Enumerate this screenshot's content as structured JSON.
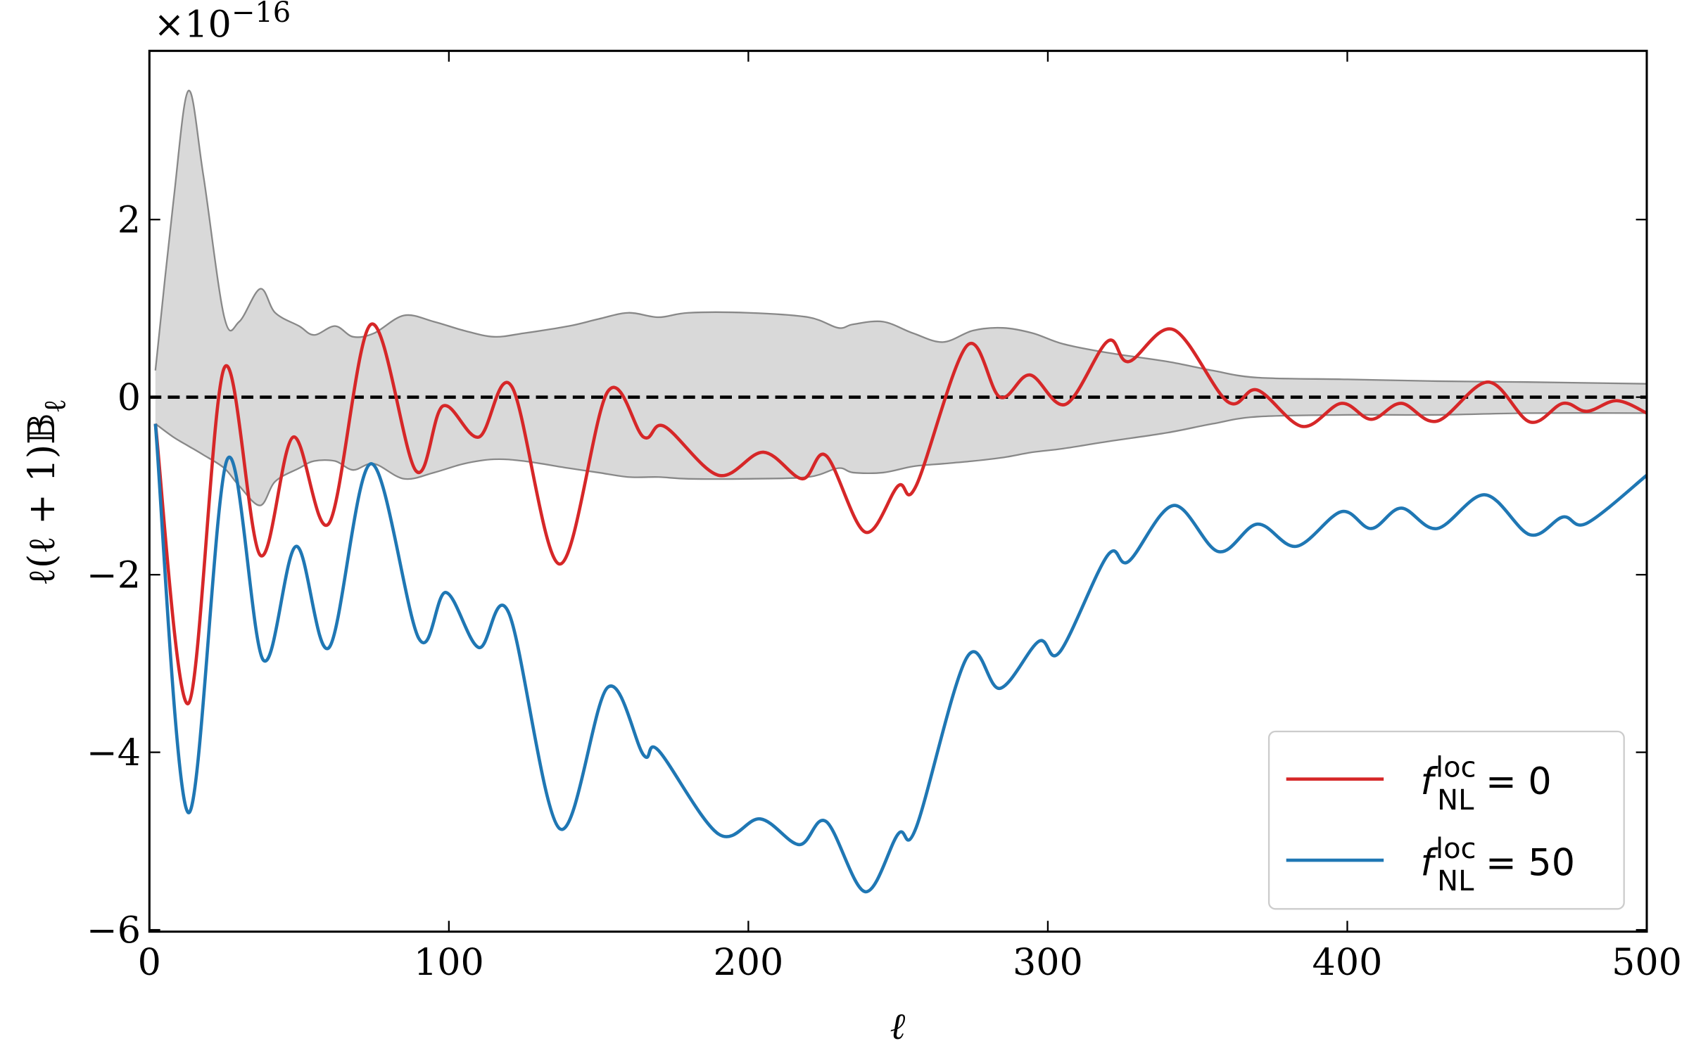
{
  "chart_data": {
    "type": "line",
    "x_label": "ℓ",
    "y_label": "ℓ(ℓ + 1)𝔹",
    "y_label_sub": "ℓ",
    "offset_text": "×10",
    "offset_exponent": "−16",
    "xlim": [
      0,
      500
    ],
    "xticks": [
      0,
      100,
      200,
      300,
      400,
      500
    ],
    "ylim": [
      -6.02,
      3.9
    ],
    "yticks": [
      {
        "value": -6,
        "label": "−6"
      },
      {
        "value": -4,
        "label": "−4"
      },
      {
        "value": -2,
        "label": "−2"
      },
      0,
      2
    ],
    "hline": 0,
    "legend": "lower right",
    "band": {
      "color": "#d9d9d9",
      "edge_color": "#888888",
      "x": [
        2,
        8,
        13,
        18,
        25,
        30,
        37,
        42,
        50,
        55,
        62,
        68,
        75,
        85,
        95,
        105,
        115,
        125,
        140,
        150,
        160,
        170,
        180,
        200,
        220,
        230,
        235,
        245,
        255,
        265,
        275,
        285,
        295,
        305,
        320,
        340,
        355,
        370,
        400,
        430,
        460,
        500
      ],
      "upper": [
        0.3,
        2.2,
        3.45,
        2.5,
        0.9,
        0.85,
        1.22,
        0.95,
        0.8,
        0.7,
        0.8,
        0.68,
        0.72,
        0.92,
        0.85,
        0.75,
        0.68,
        0.72,
        0.8,
        0.88,
        0.95,
        0.9,
        0.95,
        0.95,
        0.9,
        0.78,
        0.82,
        0.85,
        0.72,
        0.62,
        0.75,
        0.78,
        0.72,
        0.6,
        0.5,
        0.4,
        0.3,
        0.22,
        0.2,
        0.18,
        0.17,
        0.15
      ],
      "lower": [
        -0.3,
        -0.45,
        -0.55,
        -0.65,
        -0.8,
        -1.0,
        -1.22,
        -0.95,
        -0.8,
        -0.72,
        -0.72,
        -0.82,
        -0.75,
        -0.92,
        -0.85,
        -0.75,
        -0.7,
        -0.72,
        -0.8,
        -0.85,
        -0.9,
        -0.9,
        -0.92,
        -0.92,
        -0.9,
        -0.8,
        -0.85,
        -0.85,
        -0.78,
        -0.75,
        -0.72,
        -0.68,
        -0.62,
        -0.58,
        -0.5,
        -0.4,
        -0.3,
        -0.22,
        -0.2,
        -0.2,
        -0.18,
        -0.18
      ]
    },
    "series": [
      {
        "name": [
          "f",
          "loc",
          "NL",
          " = 0"
        ],
        "color": "#d62728",
        "x": [
          2,
          13,
          25,
          37,
          48,
          60,
          74,
          89,
          98,
          110,
          121,
          137,
          153,
          165,
          172,
          190,
          205,
          218,
          226,
          239,
          250,
          256,
          273,
          284,
          294,
          306,
          320,
          327,
          342,
          360,
          370,
          385,
          398,
          408,
          418,
          430,
          447,
          461,
          472,
          480,
          490,
          500
        ],
        "values": [
          -0.3,
          -3.45,
          0.33,
          -1.78,
          -0.45,
          -1.42,
          0.82,
          -0.83,
          -0.1,
          -0.45,
          0.12,
          -1.88,
          0.06,
          -0.45,
          -0.33,
          -0.88,
          -0.62,
          -0.92,
          -0.66,
          -1.52,
          -1.0,
          -1.0,
          0.58,
          0.0,
          0.25,
          -0.08,
          0.63,
          0.4,
          0.76,
          -0.05,
          0.08,
          -0.33,
          -0.07,
          -0.25,
          -0.07,
          -0.27,
          0.17,
          -0.28,
          -0.07,
          -0.16,
          -0.04,
          -0.18
        ]
      },
      {
        "name": [
          "f",
          "loc",
          "NL",
          " = 50"
        ],
        "color": "#1f77b4",
        "x": [
          2,
          13,
          26,
          38,
          49,
          60,
          74,
          90,
          99,
          110,
          120,
          137,
          153,
          165,
          170,
          190,
          204,
          217,
          226,
          239,
          250,
          256,
          273,
          284,
          297,
          304,
          320,
          327,
          342,
          357,
          370,
          383,
          398,
          408,
          418,
          430,
          446,
          461,
          472,
          480,
          500
        ],
        "values": [
          -0.3,
          -4.68,
          -0.7,
          -2.96,
          -1.68,
          -2.82,
          -0.75,
          -2.72,
          -2.2,
          -2.82,
          -2.43,
          -4.86,
          -3.27,
          -4.03,
          -3.98,
          -4.92,
          -4.75,
          -5.04,
          -4.78,
          -5.57,
          -4.92,
          -4.85,
          -2.93,
          -3.28,
          -2.75,
          -2.87,
          -1.78,
          -1.85,
          -1.22,
          -1.74,
          -1.43,
          -1.68,
          -1.29,
          -1.48,
          -1.25,
          -1.48,
          -1.1,
          -1.55,
          -1.35,
          -1.42,
          -0.88
        ]
      }
    ]
  }
}
